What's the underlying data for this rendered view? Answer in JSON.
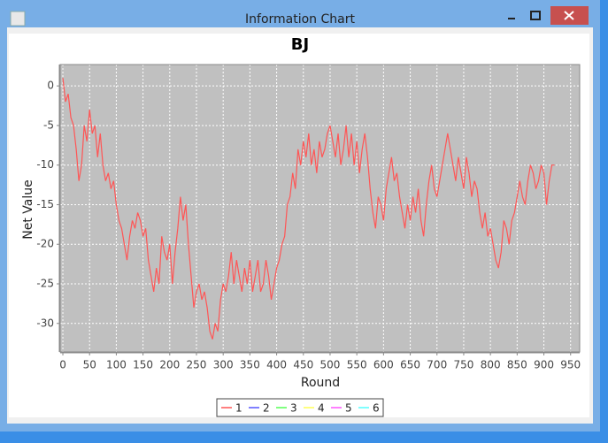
{
  "window_title": "Information Chart",
  "chart_data": {
    "type": "line",
    "title": "BJ",
    "x_label": "Round",
    "y_label": "Net Value",
    "xlim": [
      -5,
      967
    ],
    "ylim": [
      -33.6,
      2.7
    ],
    "xticks": [
      0,
      50,
      100,
      150,
      200,
      250,
      300,
      350,
      400,
      450,
      500,
      550,
      600,
      650,
      700,
      750,
      800,
      850,
      900,
      950
    ],
    "yticks": [
      0,
      -5,
      -10,
      -15,
      -20,
      -25,
      -30
    ],
    "grid": true,
    "legend": "bottom",
    "series": [
      {
        "name": "1",
        "color": "#ff5555",
        "x": [
          0,
          5,
          10,
          15,
          20,
          25,
          30,
          35,
          40,
          45,
          50,
          55,
          60,
          65,
          70,
          75,
          80,
          85,
          90,
          95,
          100,
          105,
          110,
          115,
          120,
          125,
          130,
          135,
          140,
          145,
          150,
          155,
          160,
          165,
          170,
          175,
          180,
          185,
          190,
          195,
          200,
          205,
          210,
          215,
          220,
          225,
          230,
          235,
          240,
          245,
          250,
          255,
          260,
          265,
          270,
          275,
          280,
          285,
          290,
          295,
          300,
          305,
          310,
          315,
          320,
          325,
          330,
          335,
          340,
          345,
          350,
          355,
          360,
          365,
          370,
          375,
          380,
          385,
          390,
          395,
          400,
          405,
          410,
          415,
          420,
          425,
          430,
          435,
          440,
          445,
          450,
          455,
          460,
          465,
          470,
          475,
          480,
          485,
          490,
          495,
          500,
          505,
          510,
          515,
          520,
          525,
          530,
          535,
          540,
          545,
          550,
          555,
          560,
          565,
          570,
          575,
          580,
          585,
          590,
          595,
          600,
          605,
          610,
          615,
          620,
          625,
          630,
          635,
          640,
          645,
          650,
          655,
          660,
          665,
          670,
          675,
          680,
          685,
          690,
          695,
          700,
          705,
          710,
          715,
          720,
          725,
          730,
          735,
          740,
          745,
          750,
          755,
          760,
          765,
          770,
          775,
          780,
          785,
          790,
          795,
          800,
          805,
          810,
          815,
          820,
          825,
          830,
          835,
          840,
          845,
          850,
          855,
          860,
          865,
          870,
          875,
          880,
          885,
          890,
          895,
          900,
          905,
          910,
          915,
          920
        ],
        "values": [
          1,
          -2,
          -1,
          -4,
          -5,
          -8,
          -12,
          -10,
          -5,
          -7,
          -3,
          -6,
          -5,
          -9,
          -6,
          -10,
          -12,
          -11,
          -13,
          -12,
          -15,
          -17,
          -18,
          -20,
          -22,
          -19,
          -17,
          -18,
          -16,
          -17,
          -19,
          -18,
          -22,
          -24,
          -26,
          -23,
          -25,
          -19,
          -21,
          -22,
          -20,
          -25,
          -21,
          -18,
          -14,
          -17,
          -15,
          -20,
          -24,
          -28,
          -26,
          -25,
          -27,
          -26,
          -28,
          -31,
          -32,
          -30,
          -31,
          -27,
          -25,
          -26,
          -24,
          -21,
          -25,
          -22,
          -24,
          -26,
          -23,
          -25,
          -22,
          -26,
          -24,
          -22,
          -26,
          -25,
          -22,
          -24,
          -27,
          -25,
          -23,
          -22,
          -20,
          -19,
          -15,
          -14,
          -11,
          -13,
          -8,
          -10,
          -7,
          -9,
          -6,
          -10,
          -8,
          -11,
          -7,
          -9,
          -8,
          -6,
          -5,
          -7,
          -9,
          -6,
          -10,
          -8,
          -5,
          -9,
          -6,
          -10,
          -7,
          -11,
          -8,
          -6,
          -9,
          -13,
          -16,
          -18,
          -14,
          -15,
          -17,
          -13,
          -11,
          -9,
          -12,
          -11,
          -14,
          -16,
          -18,
          -15,
          -17,
          -14,
          -16,
          -13,
          -17,
          -19,
          -15,
          -12,
          -10,
          -13,
          -14,
          -12,
          -10,
          -8,
          -6,
          -8,
          -10,
          -12,
          -9,
          -11,
          -13,
          -9,
          -11,
          -14,
          -12,
          -13,
          -16,
          -18,
          -16,
          -19,
          -18,
          -20,
          -22,
          -23,
          -21,
          -17,
          -18,
          -20,
          -17,
          -16,
          -14,
          -12,
          -14,
          -15,
          -12,
          -10,
          -11,
          -13,
          -12,
          -10,
          -11,
          -15,
          -12,
          -10,
          -10
        ]
      },
      {
        "name": "2",
        "color": "#5555ff",
        "x": [],
        "values": []
      },
      {
        "name": "3",
        "color": "#55ff55",
        "x": [],
        "values": []
      },
      {
        "name": "4",
        "color": "#ffff55",
        "x": [],
        "values": []
      },
      {
        "name": "5",
        "color": "#ff55ff",
        "x": [],
        "values": []
      },
      {
        "name": "6",
        "color": "#55ffff",
        "x": [],
        "values": []
      }
    ]
  }
}
